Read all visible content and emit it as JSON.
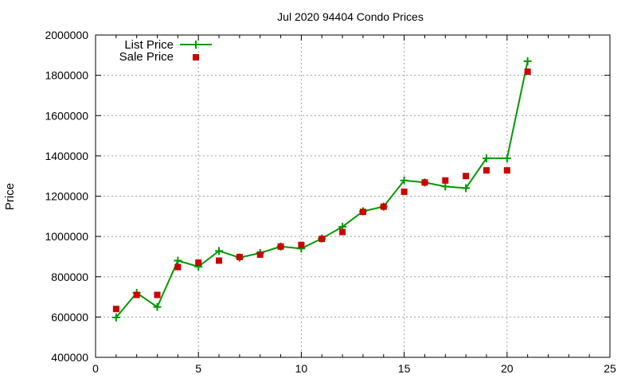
{
  "chart_data": {
    "type": "line",
    "title": "Jul 2020 94404 Condo Prices",
    "xlabel": "",
    "ylabel": "Price",
    "xlim": [
      0,
      25
    ],
    "ylim": [
      400000,
      2000000
    ],
    "xticks": [
      0,
      5,
      10,
      15,
      20,
      25
    ],
    "yticks": [
      400000,
      600000,
      800000,
      1000000,
      1200000,
      1400000,
      1600000,
      1800000,
      2000000
    ],
    "grid": true,
    "legend": "top-left",
    "series": [
      {
        "name": "List Price",
        "style": "line+cross",
        "color": "#009900",
        "x": [
          1,
          2,
          3,
          4,
          5,
          6,
          7,
          8,
          9,
          10,
          11,
          12,
          13,
          14,
          15,
          16,
          17,
          18,
          19,
          20,
          21
        ],
        "y": [
          598000,
          720000,
          650000,
          880000,
          850000,
          928000,
          895000,
          918000,
          950000,
          940000,
          990000,
          1048000,
          1125000,
          1148000,
          1278000,
          1268000,
          1248000,
          1240000,
          1388000,
          1388000,
          1870000
        ]
      },
      {
        "name": "Sale Price",
        "style": "square",
        "color": "#cc0000",
        "x": [
          1,
          2,
          3,
          4,
          5,
          6,
          7,
          8,
          9,
          10,
          11,
          12,
          13,
          14,
          15,
          16,
          17,
          18,
          19,
          20,
          21
        ],
        "y": [
          640000,
          710000,
          710000,
          848000,
          870000,
          880000,
          898000,
          910000,
          950000,
          958000,
          988000,
          1022000,
          1122000,
          1148000,
          1222000,
          1268000,
          1278000,
          1300000,
          1328000,
          1328000,
          1818000
        ]
      }
    ]
  }
}
